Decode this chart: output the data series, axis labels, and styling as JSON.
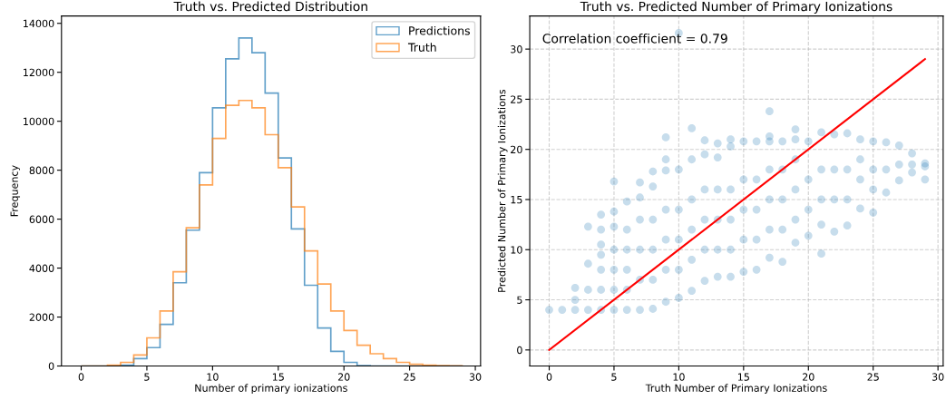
{
  "chart_data": [
    {
      "type": "histogram",
      "title": "Truth vs. Predicted Distribution",
      "xlabel": "Number of primary ionizations",
      "ylabel": "Frequency",
      "bins": [
        0,
        1,
        2,
        3,
        4,
        5,
        6,
        7,
        8,
        9,
        10,
        11,
        12,
        13,
        14,
        15,
        16,
        17,
        18,
        19,
        20,
        21,
        22,
        23,
        24,
        25,
        26,
        27,
        28,
        29
      ],
      "series": [
        {
          "name": "Predictions",
          "color": "#1f77b4",
          "values": [
            0,
            0,
            0,
            30,
            300,
            750,
            1700,
            3400,
            5550,
            7900,
            10550,
            12550,
            13400,
            12800,
            11150,
            8500,
            5600,
            3300,
            1550,
            600,
            150,
            20,
            0,
            0,
            0,
            0,
            0,
            0,
            0
          ]
        },
        {
          "name": "Truth",
          "color": "#ff7f0e",
          "values": [
            0,
            0,
            30,
            150,
            450,
            1150,
            2250,
            3850,
            5650,
            7400,
            9300,
            10650,
            10850,
            10550,
            9450,
            8100,
            6500,
            4700,
            3350,
            2250,
            1450,
            850,
            500,
            300,
            150,
            70,
            30,
            20,
            10
          ]
        }
      ],
      "xlim": [
        -1.5,
        30.4
      ],
      "xticks": [
        0,
        5,
        10,
        15,
        20,
        25,
        30
      ],
      "ylim": [
        0,
        14300
      ],
      "yticks": [
        0,
        2000,
        4000,
        6000,
        8000,
        10000,
        12000,
        14000
      ],
      "grid": false,
      "legend": "top right"
    },
    {
      "type": "scatter",
      "title": "Truth vs. Predicted Number of Primary Ionizations",
      "xlabel": "Truth Number of Primary Ionizations",
      "ylabel": "Predicted Number of Primary Ionizations",
      "annotations": [
        "Correlation coefficient = 0.79"
      ],
      "series": [
        {
          "color": "#1f77b4",
          "type": "scatter",
          "marker": "circle",
          "x": [
            0,
            1,
            2,
            2,
            2,
            3,
            3,
            3,
            3,
            4,
            4,
            4,
            4,
            4,
            4,
            4,
            5,
            5,
            5,
            5,
            5,
            5,
            5,
            6,
            6,
            6,
            6,
            6,
            6,
            7,
            7,
            7,
            7,
            7,
            7,
            8,
            8,
            8,
            8,
            8,
            8,
            9,
            9,
            9,
            9,
            9,
            9,
            9,
            10,
            10,
            10,
            10,
            10,
            10,
            11,
            11,
            11,
            11,
            11,
            11,
            12,
            12,
            12,
            12,
            12,
            12,
            13,
            13,
            13,
            13,
            13,
            13,
            14,
            14,
            14,
            14,
            14,
            14,
            15,
            15,
            15,
            15,
            15,
            16,
            16,
            16,
            16,
            16,
            17,
            17,
            17,
            17,
            17,
            17,
            17,
            18,
            18,
            18,
            18,
            18,
            19,
            19,
            19,
            19,
            19,
            19,
            20,
            20,
            20,
            20,
            21,
            21,
            21,
            21,
            21,
            22,
            22,
            22,
            22,
            23,
            23,
            23,
            23,
            24,
            24,
            24,
            24,
            25,
            25,
            25,
            25,
            26,
            26,
            26,
            27,
            27,
            27,
            28,
            28,
            28,
            29,
            29,
            29
          ],
          "values": [
            4,
            4,
            4,
            5,
            6.2,
            4,
            6,
            8.6,
            12.3,
            4,
            6,
            8,
            9.5,
            10.5,
            12,
            13.5,
            4,
            6,
            8,
            10,
            12.3,
            13.8,
            16.8,
            4,
            6,
            8,
            10,
            12,
            14.8,
            4,
            7,
            10,
            13,
            15.2,
            16.7,
            4.1,
            7,
            10,
            13,
            16.3,
            17.8,
            4.8,
            8,
            11,
            14,
            17.9,
            19,
            21.2,
            5.2,
            8,
            11,
            14,
            18,
            31.6,
            5.9,
            9,
            12,
            15,
            19,
            22.1,
            6.9,
            10,
            13,
            16,
            19.5,
            20.9,
            7.3,
            10,
            13,
            16,
            19.2,
            20.6,
            7.3,
            10,
            13,
            16,
            20.3,
            21,
            7.8,
            11,
            14,
            17,
            20.8,
            8,
            11,
            14,
            17,
            20.8,
            9.2,
            12,
            15,
            18,
            20.8,
            21.3,
            23.8,
            8.8,
            12,
            15,
            18,
            20.8,
            10.7,
            13,
            16,
            19,
            21,
            22,
            11.4,
            14,
            17,
            20.8,
            9.6,
            12.5,
            15,
            18,
            21.7,
            11.8,
            15,
            18,
            21.5,
            12.4,
            15,
            18,
            21.6,
            14.1,
            17,
            19,
            21,
            13.7,
            16,
            18,
            20.8,
            15.7,
            18,
            20.7,
            16.9,
            18.5,
            20.4,
            17.7,
            18.5,
            19.6,
            17,
            18.3,
            18.6
          ]
        },
        {
          "color": "#ff0000",
          "type": "line",
          "x": [
            0,
            29
          ],
          "values": [
            0,
            29
          ]
        }
      ],
      "xlim": [
        -1.5,
        30.4
      ],
      "xticks": [
        0,
        5,
        10,
        15,
        20,
        25,
        30
      ],
      "ylim": [
        -1.6,
        33.3
      ],
      "yticks": [
        0,
        5,
        10,
        15,
        20,
        25,
        30
      ],
      "grid": true
    }
  ]
}
